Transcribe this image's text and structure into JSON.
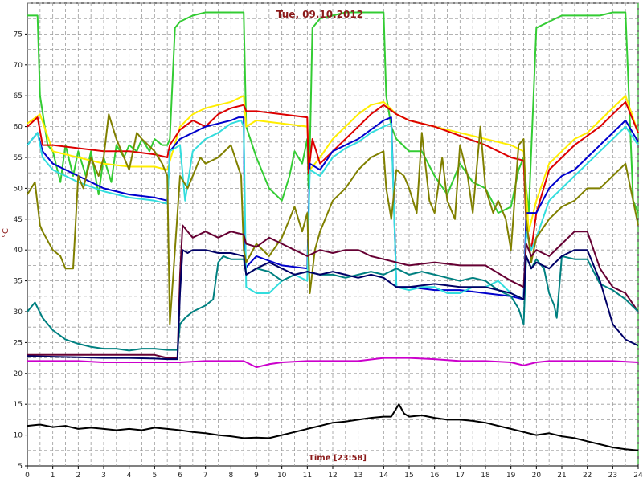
{
  "chart_data": {
    "type": "line",
    "title": "Tue, 09.10.2012",
    "xlabel": "Time [23:58]",
    "ylabel": "°C",
    "xlim": [
      0,
      24
    ],
    "ylim": [
      5,
      80
    ],
    "x_ticks": [
      0,
      1,
      2,
      3,
      4,
      5,
      6,
      7,
      8,
      9,
      10,
      11,
      12,
      13,
      14,
      15,
      16,
      17,
      18,
      19,
      20,
      21,
      22,
      23,
      24
    ],
    "y_ticks": [
      5,
      10,
      15,
      20,
      25,
      30,
      35,
      40,
      45,
      50,
      55,
      60,
      65,
      70,
      75
    ],
    "grid": true,
    "legend": "none",
    "series": [
      {
        "color": "#33cc33",
        "x": [
          0,
          0.4,
          0.5,
          0.8,
          1,
          1.3,
          1.5,
          1.8,
          2,
          2.3,
          2.5,
          2.8,
          3,
          3.3,
          3.5,
          3.8,
          4,
          4.3,
          4.5,
          4.8,
          5,
          5.3,
          5.5,
          5.6,
          5.8,
          6,
          6.5,
          7,
          7.5,
          8,
          8.5,
          8.6,
          9,
          9.5,
          10,
          10.3,
          10.5,
          10.8,
          11,
          11.05,
          11.1,
          11.2,
          11.5,
          12,
          12.5,
          13,
          13.5,
          14,
          14.1,
          14.3,
          14.5,
          15,
          15.5,
          16,
          16.5,
          17,
          17.5,
          18,
          18.5,
          19,
          19.3,
          19.5,
          19.6,
          19.7,
          20,
          20.5,
          21,
          21.5,
          22,
          22.5,
          23,
          23.5,
          23.8,
          24
        ],
        "y": [
          78,
          78,
          65,
          57,
          56,
          51,
          57,
          52,
          56,
          52,
          56,
          49,
          55,
          51,
          57,
          55,
          57,
          56,
          58,
          56,
          58,
          57,
          57,
          58,
          76,
          77,
          78,
          78.5,
          78.5,
          78.5,
          78.5,
          60,
          55,
          50,
          48,
          52,
          56,
          54,
          58,
          50,
          56,
          76,
          77.5,
          78,
          78.5,
          78.5,
          78.5,
          78.5,
          65,
          60,
          58,
          56,
          56,
          52,
          49,
          54,
          51,
          50,
          46,
          47,
          53,
          55,
          50,
          46,
          76,
          77,
          78,
          78,
          78,
          78,
          78.5,
          78.5,
          48,
          46
        ]
      },
      {
        "color": "#ffee00",
        "x": [
          0,
          0.5,
          1,
          2,
          3,
          4,
          5,
          5.5,
          6,
          6.5,
          7,
          7.5,
          8,
          8.5,
          8.6,
          9,
          10,
          11,
          11.1,
          11.5,
          12,
          12.5,
          13,
          13.5,
          14,
          14.5,
          15,
          16,
          17,
          18,
          19,
          19.5,
          19.7,
          20,
          20.5,
          21,
          21.5,
          22,
          22.5,
          23,
          23.5,
          24
        ],
        "y": [
          60.5,
          62,
          56,
          55,
          54,
          53.5,
          53.5,
          53,
          60,
          62,
          63,
          63.5,
          64,
          65,
          60,
          61,
          60.5,
          60,
          53,
          55,
          58,
          60,
          62,
          63.5,
          64,
          62,
          61,
          60,
          59,
          58,
          57,
          56,
          43,
          48,
          54,
          56,
          58,
          59,
          61,
          63,
          65,
          59
        ]
      },
      {
        "color": "#dd0000",
        "x": [
          0,
          0.4,
          0.6,
          0.8,
          1,
          2,
          3,
          4,
          5,
          5.5,
          5.6,
          6,
          6.5,
          7,
          7.5,
          8,
          8.5,
          8.6,
          9,
          10,
          11,
          11.05,
          11.2,
          11.5,
          12,
          12.5,
          13,
          13.5,
          14,
          14.5,
          15,
          16,
          17,
          18,
          19,
          19.5,
          19.6,
          19.8,
          20,
          20.5,
          21,
          21.5,
          22,
          22.5,
          23,
          23.5,
          24
        ],
        "y": [
          60,
          61.5,
          57,
          57,
          57,
          56.5,
          56,
          56,
          55.5,
          55,
          57,
          59.5,
          61,
          60,
          62,
          63,
          63.5,
          62.5,
          62.5,
          62,
          61.5,
          52.5,
          58,
          54,
          56,
          58,
          60,
          62,
          63.5,
          62,
          61,
          60,
          58.5,
          57,
          55,
          54.5,
          44,
          40,
          46,
          53,
          55,
          57,
          58.5,
          60,
          62,
          64,
          59
        ]
      },
      {
        "color": "#0000cc",
        "x": [
          0,
          0.4,
          0.6,
          1,
          2,
          3,
          4,
          5,
          5.5,
          5.6,
          6,
          6.5,
          7,
          7.5,
          8,
          8.3,
          8.5,
          8.55,
          9,
          10,
          11,
          11.1,
          11.5,
          12,
          12.5,
          13,
          13.5,
          14,
          14.3,
          14.5,
          15,
          16,
          17,
          18,
          19,
          19.5,
          19.6,
          20,
          20.5,
          21,
          21.5,
          22,
          22.5,
          23,
          23.5,
          24
        ],
        "y": [
          57,
          59,
          56,
          54,
          52,
          50,
          49,
          48.5,
          48,
          56,
          58,
          59,
          60,
          60.5,
          61,
          61.5,
          61.5,
          37,
          39,
          37.5,
          37,
          54,
          53,
          56,
          57,
          58,
          59.5,
          61,
          61.5,
          34,
          34,
          33.5,
          33.5,
          33,
          32.5,
          32,
          46,
          46,
          50,
          52,
          53,
          55,
          57,
          59,
          61,
          57.5
        ]
      },
      {
        "color": "#33dddd",
        "x": [
          0,
          0.4,
          0.6,
          1,
          2,
          3,
          4,
          5,
          5.5,
          5.6,
          6,
          6.2,
          6.5,
          7,
          7.5,
          8,
          8.4,
          8.5,
          8.6,
          9,
          9.5,
          10,
          10.5,
          11,
          11.1,
          11.5,
          12,
          12.5,
          13,
          13.5,
          14,
          14.3,
          14.5,
          15,
          15.5,
          16,
          16.5,
          17,
          17.5,
          18,
          18.5,
          19,
          19.5,
          19.6,
          19.8,
          20,
          20.5,
          21,
          21.5,
          22,
          22.5,
          23,
          23.5,
          24
        ],
        "y": [
          57,
          59,
          55,
          53,
          51,
          49.5,
          48.5,
          48,
          47.5,
          56,
          57,
          48,
          56,
          58,
          59,
          60.5,
          61,
          60,
          34,
          33,
          33,
          35,
          36,
          35,
          53,
          52,
          55,
          56.5,
          57.5,
          59,
          60,
          60.5,
          34,
          33.5,
          34,
          34,
          33,
          33,
          34,
          34,
          35,
          33,
          32,
          43,
          40,
          42,
          48,
          50,
          52,
          54,
          56,
          58,
          60,
          57
        ]
      },
      {
        "color": "#808000",
        "x": [
          0,
          0.3,
          0.5,
          0.6,
          1,
          1.3,
          1.5,
          1.8,
          2,
          2.2,
          2.5,
          2.8,
          3,
          3.2,
          3.5,
          3.8,
          4,
          4.3,
          4.5,
          5,
          5.3,
          5.5,
          5.6,
          5.8,
          6,
          6.3,
          6.5,
          6.8,
          7,
          7.5,
          8,
          8.4,
          8.5,
          8.6,
          9,
          9.5,
          10,
          10.3,
          10.5,
          10.8,
          11,
          11.1,
          11.3,
          11.5,
          12,
          12.5,
          13,
          13.5,
          14,
          14.1,
          14.3,
          14.5,
          14.8,
          15,
          15.3,
          15.5,
          15.8,
          16,
          16.3,
          16.5,
          16.8,
          17,
          17.3,
          17.5,
          17.8,
          18,
          18.3,
          18.5,
          18.8,
          19,
          19.3,
          19.5,
          19.6,
          19.8,
          20,
          20.5,
          21,
          21.5,
          22,
          22.5,
          23,
          23.5,
          24
        ],
        "y": [
          49,
          51,
          44,
          43,
          40,
          39,
          37,
          37,
          52,
          50,
          55,
          52,
          55,
          62,
          58,
          55,
          53,
          59,
          58,
          56,
          54,
          52,
          28,
          40,
          52,
          50,
          52,
          55,
          54,
          55,
          57,
          52,
          40,
          38,
          41,
          39,
          42,
          45,
          47,
          43,
          46,
          33,
          40,
          43,
          48,
          50,
          53,
          55,
          56,
          50,
          45,
          53,
          52,
          50,
          46,
          59,
          48,
          46,
          55,
          48,
          45,
          57,
          52,
          46,
          60,
          50,
          46,
          48,
          45,
          40,
          57,
          58,
          45,
          38,
          42,
          45,
          47,
          48,
          50,
          50,
          52,
          54,
          44
        ]
      },
      {
        "color": "#660033",
        "x": [
          0,
          1,
          2,
          3,
          4,
          5,
          5.5,
          5.9,
          6,
          6.1,
          6.3,
          6.5,
          7,
          7.5,
          8,
          8.5,
          8.6,
          9,
          9.5,
          10,
          10.5,
          11,
          11.5,
          12,
          12.5,
          13,
          13.5,
          14,
          14.5,
          15,
          16,
          17,
          18,
          19,
          19.5,
          19.6,
          19.8,
          20,
          20.5,
          21,
          21.5,
          22,
          22.5,
          23,
          23.5,
          24
        ],
        "y": [
          23,
          23,
          23,
          23,
          23,
          23,
          22.5,
          22.5,
          36,
          44,
          43,
          42,
          43,
          42,
          43,
          42.5,
          41,
          40.5,
          42,
          41,
          40,
          39,
          40,
          39.5,
          40,
          40,
          39,
          38.5,
          38,
          37.5,
          38,
          37.5,
          37.5,
          35,
          34,
          41,
          39,
          40,
          39,
          41,
          43,
          43,
          37,
          34,
          33,
          30
        ]
      },
      {
        "color": "#008080",
        "x": [
          0,
          0.3,
          0.6,
          1,
          1.5,
          2,
          2.5,
          3,
          3.5,
          4,
          4.5,
          5,
          5.5,
          5.7,
          5.9,
          6,
          6.2,
          6.5,
          7,
          7.3,
          7.5,
          7.7,
          8,
          8.5,
          8.6,
          9,
          9.5,
          10,
          10.5,
          11,
          11.5,
          12,
          12.5,
          13,
          13.5,
          14,
          14.5,
          15,
          15.5,
          16,
          16.5,
          17,
          17.5,
          18,
          18.5,
          19,
          19.3,
          19.5,
          19.6,
          19.8,
          20,
          20.3,
          20.5,
          20.7,
          20.8,
          21,
          21.5,
          22,
          22.5,
          23,
          23.5,
          24
        ],
        "y": [
          30,
          31.5,
          29,
          27,
          25.5,
          24.8,
          24.3,
          24,
          24,
          23.7,
          24,
          24,
          23.8,
          23.8,
          23.8,
          28,
          29,
          30,
          31,
          32,
          38,
          39,
          38.5,
          38.5,
          36,
          37,
          36.5,
          35,
          36,
          36.5,
          36,
          36,
          35.5,
          36,
          36.5,
          36,
          37,
          36,
          36.5,
          36,
          35.5,
          35,
          35.5,
          35,
          33.5,
          32.5,
          30.5,
          28,
          39,
          37,
          38.5,
          37,
          33,
          31,
          29,
          39,
          38.5,
          38.5,
          34.5,
          33.5,
          32,
          30
        ]
      },
      {
        "color": "#000066",
        "x": [
          0,
          1,
          2,
          3,
          4,
          5,
          5.5,
          5.9,
          6,
          6.1,
          6.3,
          6.5,
          7,
          7.5,
          8,
          8.5,
          8.6,
          9,
          9.5,
          10,
          10.5,
          11,
          11.5,
          12,
          12.5,
          13,
          13.5,
          14,
          14.5,
          15,
          16,
          17,
          18,
          19,
          19.5,
          19.6,
          19.8,
          20,
          20.5,
          21,
          21.5,
          22,
          22.5,
          23,
          23.5,
          24
        ],
        "y": [
          22.8,
          22.7,
          22.6,
          22.5,
          22.5,
          22.4,
          22.3,
          22.3,
          33,
          40,
          39.5,
          40,
          40,
          39.5,
          39.5,
          39,
          36,
          37,
          38,
          37,
          36,
          36.5,
          36,
          36.5,
          36,
          35.5,
          36,
          35.5,
          34,
          34,
          34.5,
          34,
          34,
          33,
          32,
          39,
          37,
          38,
          37,
          39,
          40,
          40,
          35,
          28,
          25.5,
          24.5
        ]
      },
      {
        "color": "#cc00cc",
        "x": [
          0,
          1,
          2,
          3,
          4,
          5,
          6,
          7,
          8,
          8.5,
          9,
          9.5,
          10,
          11,
          12,
          13,
          14,
          15,
          16,
          17,
          18,
          19,
          19.5,
          20,
          20.5,
          21,
          22,
          23,
          24
        ],
        "y": [
          22,
          22,
          22,
          21.8,
          21.8,
          21.8,
          21.8,
          22,
          22,
          22,
          21,
          21.5,
          21.8,
          22,
          22,
          22,
          22.5,
          22.5,
          22.3,
          22,
          22,
          21.8,
          21.3,
          21.8,
          22,
          22,
          22,
          22,
          21.8
        ]
      },
      {
        "color": "#000000",
        "x": [
          0,
          0.5,
          1,
          1.5,
          2,
          2.5,
          3,
          3.5,
          4,
          4.5,
          5,
          5.5,
          6,
          6.5,
          7,
          7.5,
          8,
          8.5,
          9,
          9.5,
          10,
          10.5,
          11,
          11.5,
          12,
          12.5,
          13,
          13.5,
          14,
          14.3,
          14.6,
          14.8,
          15,
          15.5,
          16,
          16.5,
          17,
          17.5,
          18,
          18.5,
          19,
          19.5,
          20,
          20.5,
          21,
          21.5,
          22,
          22.5,
          23,
          23.5,
          24
        ],
        "y": [
          11.5,
          11.7,
          11.3,
          11.5,
          11,
          11.2,
          11,
          10.8,
          11,
          10.8,
          11.2,
          11,
          10.8,
          10.5,
          10.3,
          10,
          9.8,
          9.5,
          9.6,
          9.5,
          10,
          10.5,
          11,
          11.5,
          12,
          12.2,
          12.5,
          12.8,
          13,
          13,
          15,
          13.5,
          13,
          13.2,
          12.8,
          12.5,
          12.5,
          12.3,
          12,
          11.5,
          11,
          10.5,
          10,
          10.3,
          9.8,
          9.5,
          9,
          8.5,
          8,
          7.7,
          7.5
        ]
      }
    ]
  }
}
